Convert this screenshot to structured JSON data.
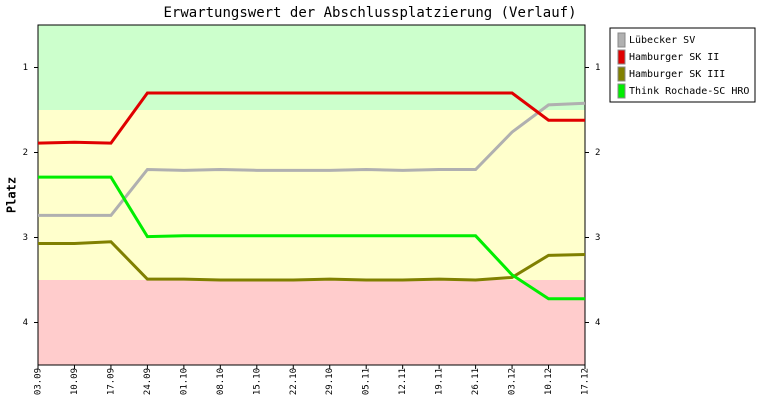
{
  "chart_data": {
    "type": "line",
    "title": "Erwartungswert der Abschlussplatzierung (Verlauf)",
    "ylabel": "Platz",
    "categories": [
      "03.09",
      "10.09",
      "17.09",
      "24.09",
      "01.10",
      "08.10",
      "15.10",
      "22.10",
      "29.10",
      "05.11",
      "12.11",
      "19.11",
      "26.11",
      "03.12",
      "10.12",
      "17.12"
    ],
    "ylim": [
      4.5,
      0.5
    ],
    "yticks": [
      1,
      2,
      3,
      4
    ],
    "bands": [
      {
        "from": 0.5,
        "to": 1.5,
        "color": "#ccffcc"
      },
      {
        "from": 1.5,
        "to": 3.5,
        "color": "#ffffcc"
      },
      {
        "from": 3.5,
        "to": 4.5,
        "color": "#ffcccc"
      }
    ],
    "series": [
      {
        "name": "Lübecker SV",
        "color": "#b0b0b0",
        "values": [
          2.74,
          2.74,
          2.74,
          2.2,
          2.21,
          2.2,
          2.21,
          2.21,
          2.21,
          2.2,
          2.21,
          2.2,
          2.2,
          1.76,
          1.44,
          1.42
        ]
      },
      {
        "name": "Hamburger SK II",
        "color": "#e00000",
        "values": [
          1.89,
          1.88,
          1.89,
          1.3,
          1.3,
          1.3,
          1.3,
          1.3,
          1.3,
          1.3,
          1.3,
          1.3,
          1.3,
          1.3,
          1.62,
          1.62
        ]
      },
      {
        "name": "Hamburger SK III",
        "color": "#808000",
        "values": [
          3.07,
          3.07,
          3.05,
          3.49,
          3.49,
          3.5,
          3.5,
          3.5,
          3.49,
          3.5,
          3.5,
          3.49,
          3.5,
          3.47,
          3.21,
          3.2
        ]
      },
      {
        "name": "Think Rochade-SC HRO",
        "color": "#00ee00",
        "values": [
          2.29,
          2.29,
          2.29,
          2.99,
          2.98,
          2.98,
          2.98,
          2.98,
          2.98,
          2.98,
          2.98,
          2.98,
          2.98,
          3.44,
          3.72,
          3.72
        ]
      }
    ],
    "legend": "right"
  }
}
